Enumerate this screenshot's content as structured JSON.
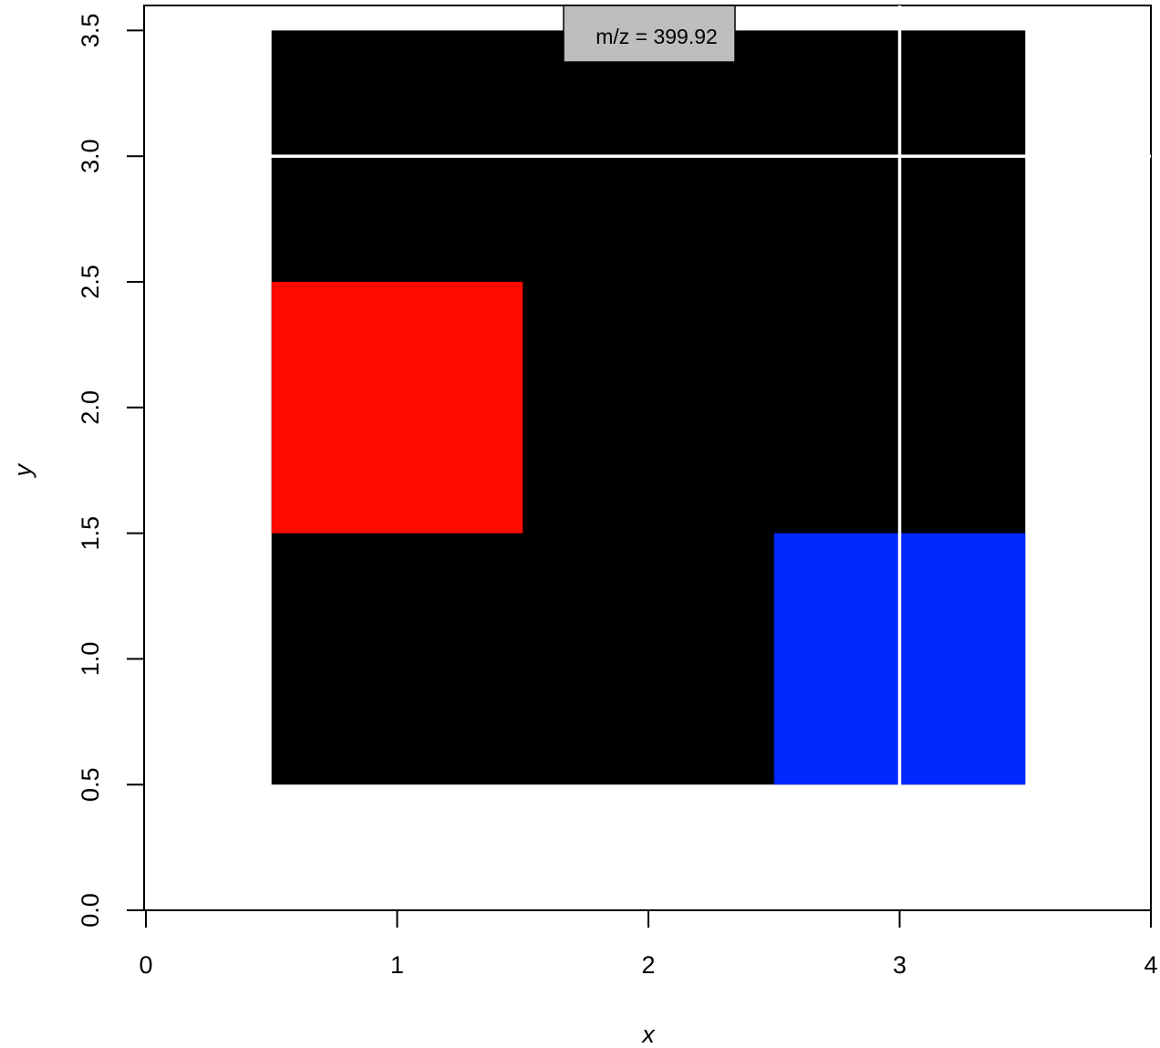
{
  "chart_data": {
    "type": "heatmap",
    "xlabel": "x",
    "ylabel": "y",
    "xlim": [
      0,
      4
    ],
    "ylim": [
      0,
      3.5
    ],
    "x_ticks": [
      "0",
      "1",
      "2",
      "3",
      "4"
    ],
    "y_ticks": [
      "0.0",
      "0.5",
      "1.0",
      "1.5",
      "2.0",
      "2.5",
      "3.0",
      "3.5"
    ],
    "x_tick_values": [
      0,
      1,
      2,
      3,
      4
    ],
    "y_tick_values": [
      0,
      0.5,
      1.0,
      1.5,
      2.0,
      2.5,
      3.0,
      3.5
    ],
    "cell_size": 1,
    "background_color": "#000000",
    "cells": [
      {
        "x": 1,
        "y": 2,
        "color": "#ff0a00"
      },
      {
        "x": 3,
        "y": 1,
        "color": "#0028ff"
      }
    ],
    "grid_extent": {
      "x": [
        1,
        3
      ],
      "y": [
        1,
        3
      ]
    },
    "crosshair": {
      "x": 3,
      "y": 3,
      "color": "#ffffff"
    },
    "annotation": {
      "text": "m/z = 399.92",
      "x": 2,
      "y": 3.5
    }
  }
}
